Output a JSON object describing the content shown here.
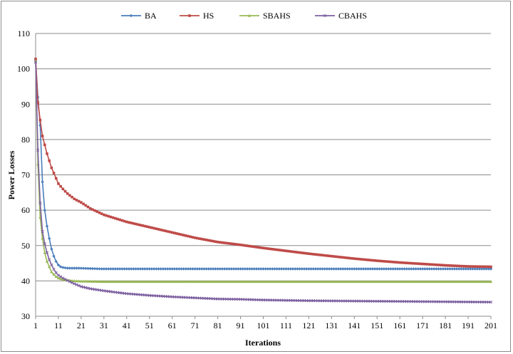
{
  "chart_data": {
    "type": "line",
    "title": "",
    "xlabel": "Iterations",
    "ylabel": "Power Losses",
    "xlim": [
      1,
      201
    ],
    "ylim": [
      30,
      110
    ],
    "yticks": [
      30,
      40,
      50,
      60,
      70,
      80,
      90,
      100,
      110
    ],
    "xticks": [
      1,
      11,
      21,
      31,
      41,
      51,
      61,
      71,
      81,
      91,
      101,
      111,
      121,
      131,
      141,
      151,
      161,
      171,
      181,
      191,
      201
    ],
    "grid": "horizontal",
    "legend_position": "top",
    "series": [
      {
        "name": "BA",
        "color": "#4a7ebb",
        "marker": "diamond",
        "points": [
          [
            1,
            102.5
          ],
          [
            2,
            92
          ],
          [
            3,
            84
          ],
          [
            4,
            68
          ],
          [
            5,
            60
          ],
          [
            6,
            55.5
          ],
          [
            7,
            52
          ],
          [
            8,
            49
          ],
          [
            9,
            47
          ],
          [
            10,
            45.5
          ],
          [
            11,
            44.5
          ],
          [
            12,
            44
          ],
          [
            13,
            43.8
          ],
          [
            15,
            43.6
          ],
          [
            20,
            43.6
          ],
          [
            25,
            43.5
          ],
          [
            30,
            43.4
          ],
          [
            50,
            43.4
          ],
          [
            100,
            43.4
          ],
          [
            150,
            43.4
          ],
          [
            201,
            43.4
          ]
        ]
      },
      {
        "name": "HS",
        "color": "#be4b48",
        "marker": "square",
        "points": [
          [
            1,
            102.8
          ],
          [
            2,
            90.5
          ],
          [
            3,
            85.5
          ],
          [
            4,
            81
          ],
          [
            5,
            78.5
          ],
          [
            6,
            76
          ],
          [
            7,
            74
          ],
          [
            8,
            72
          ],
          [
            9,
            70.5
          ],
          [
            10,
            69
          ],
          [
            11,
            67.5
          ],
          [
            13,
            66
          ],
          [
            15,
            64.7
          ],
          [
            18,
            63.2
          ],
          [
            21,
            62.2
          ],
          [
            25,
            60.5
          ],
          [
            31,
            58.7
          ],
          [
            41,
            56.7
          ],
          [
            51,
            55.2
          ],
          [
            61,
            53.7
          ],
          [
            71,
            52.2
          ],
          [
            81,
            51
          ],
          [
            91,
            50.2
          ],
          [
            101,
            49.3
          ],
          [
            111,
            48.5
          ],
          [
            121,
            47.7
          ],
          [
            131,
            47
          ],
          [
            141,
            46.3
          ],
          [
            151,
            45.7
          ],
          [
            161,
            45.2
          ],
          [
            171,
            44.8
          ],
          [
            181,
            44.4
          ],
          [
            191,
            44.1
          ],
          [
            201,
            44
          ]
        ]
      },
      {
        "name": "SBAHS",
        "color": "#98b954",
        "marker": "triangle",
        "points": [
          [
            1,
            102.2
          ],
          [
            2,
            73
          ],
          [
            3,
            58
          ],
          [
            4,
            52
          ],
          [
            5,
            48
          ],
          [
            6,
            45.5
          ],
          [
            7,
            44
          ],
          [
            8,
            42.5
          ],
          [
            9,
            41.8
          ],
          [
            10,
            41.2
          ],
          [
            11,
            40.8
          ],
          [
            13,
            40.4
          ],
          [
            15,
            40.2
          ],
          [
            18,
            40
          ],
          [
            21,
            39.9
          ],
          [
            30,
            39.8
          ],
          [
            60,
            39.8
          ],
          [
            100,
            39.8
          ],
          [
            150,
            39.8
          ],
          [
            201,
            39.8
          ]
        ]
      },
      {
        "name": "CBAHS",
        "color": "#7d60a0",
        "marker": "x",
        "points": [
          [
            1,
            101.9
          ],
          [
            2,
            77
          ],
          [
            3,
            62
          ],
          [
            4,
            54
          ],
          [
            5,
            50.5
          ],
          [
            6,
            48
          ],
          [
            7,
            46
          ],
          [
            8,
            44.5
          ],
          [
            9,
            43.3
          ],
          [
            10,
            42.3
          ],
          [
            11,
            41.6
          ],
          [
            13,
            40.8
          ],
          [
            15,
            40.1
          ],
          [
            18,
            39.2
          ],
          [
            21,
            38.4
          ],
          [
            25,
            37.8
          ],
          [
            31,
            37.2
          ],
          [
            41,
            36.4
          ],
          [
            51,
            35.9
          ],
          [
            61,
            35.5
          ],
          [
            71,
            35.2
          ],
          [
            81,
            34.9
          ],
          [
            91,
            34.8
          ],
          [
            101,
            34.6
          ],
          [
            121,
            34.4
          ],
          [
            141,
            34.3
          ],
          [
            161,
            34.2
          ],
          [
            181,
            34.1
          ],
          [
            201,
            34
          ]
        ]
      }
    ]
  }
}
